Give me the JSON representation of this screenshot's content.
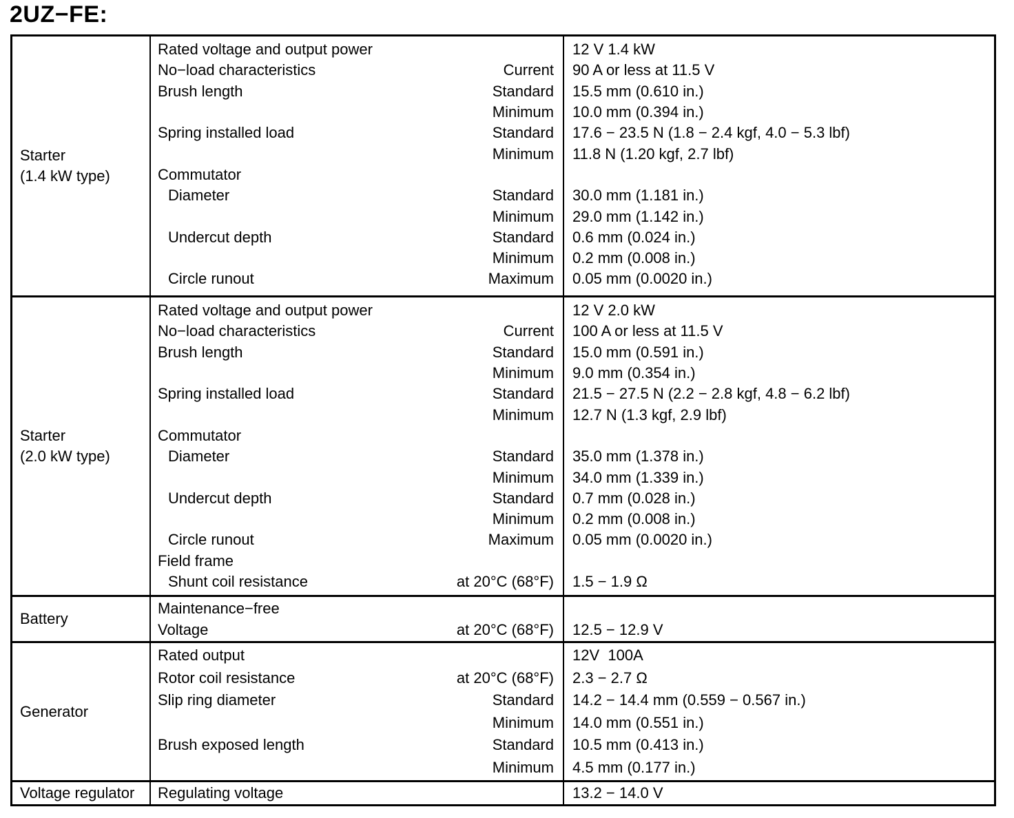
{
  "title": "2UZ−FE:",
  "table": {
    "sections": [
      {
        "component": [
          "Starter",
          "(1.4 kW type)"
        ],
        "rows": [
          {
            "item": "Rated voltage and output power",
            "indent": false,
            "cond": "",
            "value": "12 V 1.4 kW"
          },
          {
            "item": "No−load characteristics",
            "indent": false,
            "cond": "Current",
            "value": "90 A or less at 11.5 V"
          },
          {
            "item": "Brush length",
            "indent": false,
            "cond": "Standard",
            "value": "15.5 mm (0.610 in.)"
          },
          {
            "item": "",
            "indent": false,
            "cond": "Minimum",
            "value": "10.0 mm (0.394 in.)"
          },
          {
            "item": "Spring installed load",
            "indent": false,
            "cond": "Standard",
            "value": "17.6 − 23.5 N (1.8 − 2.4 kgf, 4.0 − 5.3 lbf)"
          },
          {
            "item": "",
            "indent": false,
            "cond": "Minimum",
            "value": "11.8 N (1.20 kgf, 2.7 lbf)"
          },
          {
            "item": "Commutator",
            "indent": false,
            "cond": "",
            "value": ""
          },
          {
            "item": "Diameter",
            "indent": true,
            "cond": "Standard",
            "value": "30.0 mm (1.181 in.)"
          },
          {
            "item": "",
            "indent": false,
            "cond": "Minimum",
            "value": "29.0 mm (1.142 in.)"
          },
          {
            "item": "Undercut depth",
            "indent": true,
            "cond": "Standard",
            "value": "0.6 mm (0.024 in.)"
          },
          {
            "item": "",
            "indent": false,
            "cond": "Minimum",
            "value": "0.2 mm (0.008 in.)"
          },
          {
            "item": "Circle runout",
            "indent": true,
            "cond": "Maximum",
            "value": "0.05 mm (0.0020 in.)"
          }
        ]
      },
      {
        "component": [
          "Starter",
          "(2.0 kW type)"
        ],
        "rows": [
          {
            "item": "Rated voltage and output power",
            "indent": false,
            "cond": "",
            "value": "12 V 2.0 kW"
          },
          {
            "item": "No−load characteristics",
            "indent": false,
            "cond": "Current",
            "value": "100 A or less at 11.5 V"
          },
          {
            "item": "Brush length",
            "indent": false,
            "cond": "Standard",
            "value": "15.0 mm (0.591 in.)"
          },
          {
            "item": "",
            "indent": false,
            "cond": "Minimum",
            "value": "9.0 mm (0.354 in.)"
          },
          {
            "item": "Spring installed load",
            "indent": false,
            "cond": "Standard",
            "value": "21.5 − 27.5 N (2.2 − 2.8 kgf, 4.8 − 6.2 lbf)"
          },
          {
            "item": "",
            "indent": false,
            "cond": "Minimum",
            "value": "12.7 N (1.3 kgf, 2.9 lbf)"
          },
          {
            "item": "Commutator",
            "indent": false,
            "cond": "",
            "value": ""
          },
          {
            "item": "Diameter",
            "indent": true,
            "cond": "Standard",
            "value": "35.0 mm (1.378 in.)"
          },
          {
            "item": "",
            "indent": false,
            "cond": "Minimum",
            "value": "34.0 mm (1.339 in.)"
          },
          {
            "item": "Undercut depth",
            "indent": true,
            "cond": "Standard",
            "value": "0.7 mm (0.028 in.)"
          },
          {
            "item": "",
            "indent": false,
            "cond": "Minimum",
            "value": "0.2 mm (0.008 in.)"
          },
          {
            "item": "Circle runout",
            "indent": true,
            "cond": "Maximum",
            "value": "0.05 mm (0.0020 in.)"
          },
          {
            "item": "Field frame",
            "indent": false,
            "cond": "",
            "value": ""
          },
          {
            "item": "Shunt coil resistance",
            "indent": true,
            "cond": "at 20°C (68°F)",
            "value": "1.5 − 1.9 Ω"
          }
        ]
      },
      {
        "component": [
          "Battery"
        ],
        "rows": [
          {
            "item": "Maintenance−free",
            "indent": false,
            "cond": "",
            "value": ""
          },
          {
            "item": "Voltage",
            "indent": false,
            "cond": "at 20°C (68°F)",
            "value": "12.5 − 12.9 V"
          }
        ]
      },
      {
        "component": [
          "Generator"
        ],
        "rows": [
          {
            "item": "Rated output",
            "indent": false,
            "cond": "",
            "value": "12V  100A"
          },
          {
            "item": "Rotor coil resistance",
            "indent": false,
            "cond": "at 20°C (68°F)",
            "value": "2.3 − 2.7 Ω"
          },
          {
            "item": "Slip ring diameter",
            "indent": false,
            "cond": "Standard",
            "value": "14.2 − 14.4 mm (0.559 − 0.567 in.)"
          },
          {
            "item": "",
            "indent": false,
            "cond": "Minimum",
            "value": "14.0 mm (0.551 in.)"
          },
          {
            "item": "Brush exposed length",
            "indent": false,
            "cond": "Standard",
            "value": "10.5 mm (0.413 in.)"
          },
          {
            "item": "",
            "indent": false,
            "cond": "Minimum",
            "value": "4.5 mm (0.177 in.)"
          }
        ]
      },
      {
        "component": [
          "Voltage regulator"
        ],
        "rows": [
          {
            "item": "Regulating voltage",
            "indent": false,
            "cond": "",
            "value": "13.2 − 14.0 V"
          }
        ]
      }
    ]
  }
}
